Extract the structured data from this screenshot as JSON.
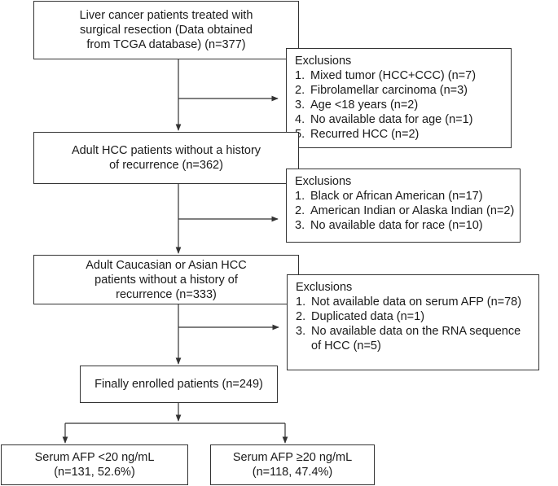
{
  "boxes": {
    "start": [
      "Liver cancer patients treated with",
      "surgical resection (Data obtained",
      "from TCGA database) (n=377)"
    ],
    "adult_hcc": [
      "Adult HCC patients without  a history",
      "of recurrence (n=362)"
    ],
    "caucasian_asian": [
      "Adult Caucasian or Asian HCC",
      "patients without  a history of",
      "recurrence (n=333)"
    ],
    "enrolled": [
      "Finally enrolled patients (n=249)"
    ],
    "afp_low": [
      "Serum AFP <20 ng/mL",
      "(n=131, 52.6%)"
    ],
    "afp_high": [
      "Serum AFP ≥20 ng/mL",
      "(n=118, 47.4%)"
    ]
  },
  "exclusions": [
    {
      "title": "Exclusions",
      "items": [
        {
          "num": "1.",
          "text": [
            "Mixed tumor (HCC+CCC) (n=7)"
          ]
        },
        {
          "num": "2.",
          "text": [
            "Fibrolamellar carcinoma (n=3)"
          ]
        },
        {
          "num": "3.",
          "text": [
            "Age <18 years (n=2)"
          ]
        },
        {
          "num": "4.",
          "text": [
            "No available data for age (n=1)"
          ]
        },
        {
          "num": "5.",
          "text": [
            "Recurred HCC (n=2)"
          ]
        }
      ]
    },
    {
      "title": "Exclusions",
      "items": [
        {
          "num": "1.",
          "text": [
            "Black or African American (n=17)"
          ]
        },
        {
          "num": "2.",
          "text": [
            "American Indian or Alaska Indian (n=2)"
          ]
        },
        {
          "num": "3.",
          "text": [
            "No available data for race (n=10)"
          ]
        }
      ]
    },
    {
      "title": "Exclusions",
      "items": [
        {
          "num": "1.",
          "text": [
            "Not available data on serum AFP (n=78)"
          ]
        },
        {
          "num": "2.",
          "text": [
            "Duplicated data (n=1)"
          ]
        },
        {
          "num": "3.",
          "text": [
            "No available data on the RNA sequence",
            "of HCC (n=5)"
          ]
        }
      ]
    }
  ]
}
